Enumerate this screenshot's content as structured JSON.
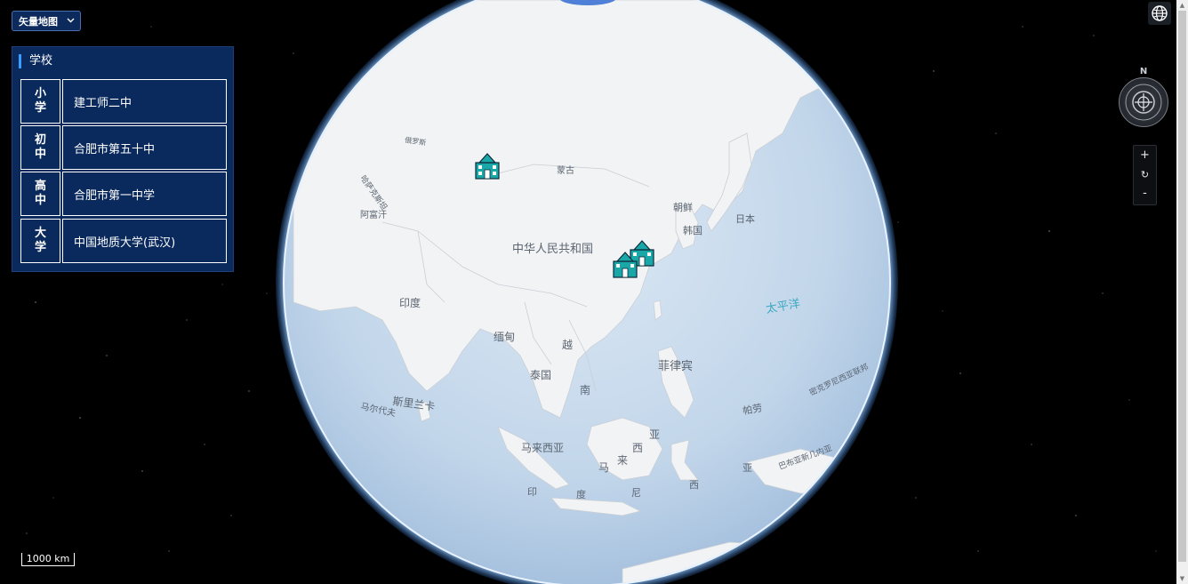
{
  "layer_select": {
    "value": "矢量地图",
    "chevron": "⌄"
  },
  "school_panel": {
    "title": "学校",
    "rows": [
      {
        "level": "小学",
        "name": "建工师二中"
      },
      {
        "level": "初中",
        "name": "合肥市第五十中"
      },
      {
        "level": "高中",
        "name": "合肥市第一中学"
      },
      {
        "level": "大学",
        "name": "中国地质大学(武汉)"
      }
    ]
  },
  "compass": {
    "north_label": "N"
  },
  "zoom": {
    "in": "+",
    "reset": "↻",
    "out": "-"
  },
  "scale_bar": {
    "label": "1000 km"
  },
  "map_labels": {
    "mongolia": "蒙古",
    "china": "中华人民共和国",
    "korea_dprk": "朝鲜",
    "korea": "韩国",
    "japan": "日本",
    "india": "印度",
    "myanmar": "缅甸",
    "vietnam": "越",
    "vietnam2": "南",
    "thailand": "泰国",
    "philippines": "菲律宾",
    "malaysia": "马来西亚",
    "indonesia_1": "印",
    "indonesia_2": "度",
    "indonesia_3": "尼",
    "indonesia_4": "西",
    "pacific": "太平洋",
    "palau": "帕劳",
    "srilanka": "斯里兰卡",
    "maldives": "马尔代夫",
    "kazakhstan": "哈萨克斯坦",
    "afghanistan": "阿富汗",
    "russia": "俄罗斯",
    "malaysia_east_1": "马",
    "malaysia_east_2": "来",
    "malaysia_east_3": "西",
    "malaysia_east_4": "亚",
    "guinea": "亚",
    "micronesia": "密克罗尼西亚联邦",
    "png": "巴布亚新几内亚"
  },
  "colors": {
    "panel_bg": "#0a2a5e",
    "accent": "#3b9cff",
    "ocean": "#bcd3ea",
    "land": "#f2f3f4",
    "marker": "#1aa7a7"
  },
  "icons": {
    "globe_button": "globe-icon",
    "compass": "compass-icon",
    "school_marker": "school-building-icon"
  }
}
